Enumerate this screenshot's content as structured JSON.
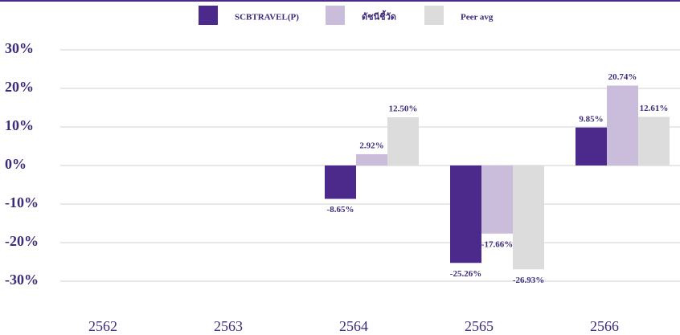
{
  "chart_data": {
    "type": "bar",
    "categories": [
      "2562",
      "2563",
      "2564",
      "2565",
      "2566"
    ],
    "series": [
      {
        "name": "SCBTRAVEL(P)",
        "color": "#4b2a8c",
        "values": [
          null,
          null,
          -8.65,
          -25.26,
          9.85
        ],
        "value_labels": [
          null,
          null,
          "-8.65%",
          "-25.26%",
          "9.85%"
        ]
      },
      {
        "name": "ดัชนีชี้วัด",
        "color": "#c9bddb",
        "values": [
          null,
          null,
          2.92,
          -17.66,
          20.74
        ],
        "value_labels": [
          null,
          null,
          "2.92%",
          "-17.66%",
          "20.74%"
        ]
      },
      {
        "name": "Peer avg",
        "color": "#dcdcdc",
        "values": [
          null,
          null,
          12.5,
          -26.93,
          12.61
        ],
        "value_labels": [
          null,
          null,
          "12.50%",
          "-26.93%",
          "12.61%"
        ]
      }
    ],
    "ylim": [
      -30,
      30
    ],
    "yticks": [
      {
        "value": -30,
        "label": "-30%"
      },
      {
        "value": -20,
        "label": "-20%"
      },
      {
        "value": -10,
        "label": "-10%"
      },
      {
        "value": 0,
        "label": "0%"
      },
      {
        "value": 10,
        "label": "10%"
      },
      {
        "value": 20,
        "label": "20%"
      },
      {
        "value": 30,
        "label": "30%"
      }
    ],
    "grid": true,
    "legend": "top"
  }
}
